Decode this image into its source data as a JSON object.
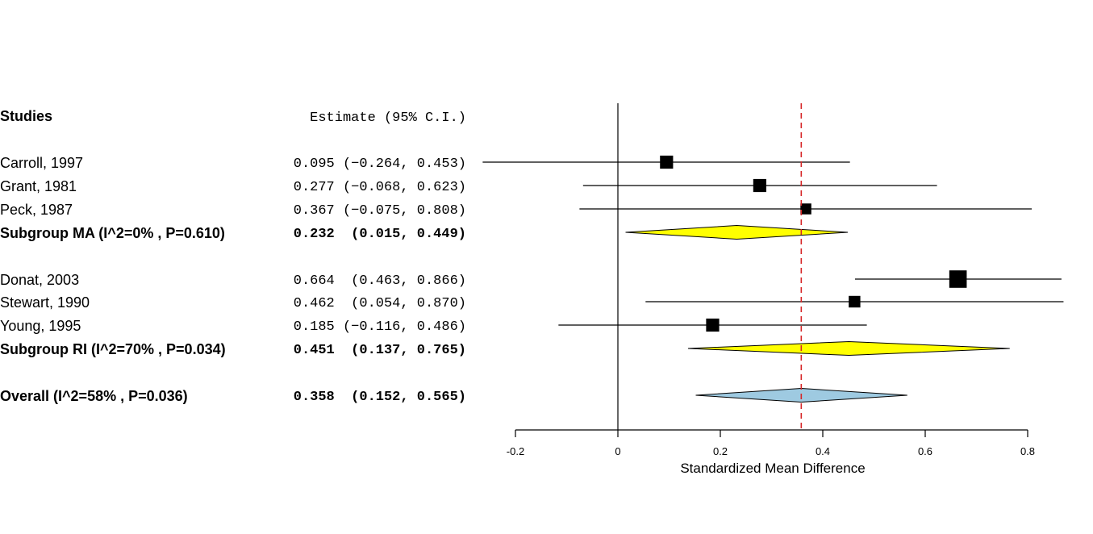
{
  "chart_data": {
    "type": "forest",
    "header": {
      "studies": "Studies",
      "estimate": "Estimate (95% C.I.)"
    },
    "xlabel": "Standardized Mean Difference",
    "xlim": [
      -0.2,
      0.8
    ],
    "ticks": [
      "-0.2",
      "0",
      "0.2",
      "0.4",
      "0.6",
      "0.8"
    ],
    "tick_values": [
      -0.2,
      0,
      0.2,
      0.4,
      0.6,
      0.8
    ],
    "reference_line": 0.358,
    "colors": {
      "subgroup_diamond": "#ffff00",
      "overall_diamond": "#9ecae1",
      "reference_line": "#d62728",
      "study_marker": "#000000"
    },
    "rows": [
      {
        "kind": "study",
        "label": "Carroll, 1997",
        "est": 0.095,
        "lo": -0.264,
        "hi": 0.453,
        "text": "0.095 (−0.264, 0.453)",
        "weight": 0.9
      },
      {
        "kind": "study",
        "label": "Grant, 1981",
        "est": 0.277,
        "lo": -0.068,
        "hi": 0.623,
        "text": "0.277 (−0.068, 0.623)",
        "weight": 0.9
      },
      {
        "kind": "study",
        "label": "Peck, 1987",
        "est": 0.367,
        "lo": -0.075,
        "hi": 0.808,
        "text": "0.367 (−0.075, 0.808)",
        "weight": 0.75
      },
      {
        "kind": "summary",
        "label": "Subgroup MA (I^2=0% , P=0.610)",
        "est": 0.232,
        "lo": 0.015,
        "hi": 0.449,
        "text": "0.232  (0.015, 0.449)",
        "color": "#ffff00"
      },
      {
        "kind": "study",
        "label": "Donat, 2003",
        "est": 0.664,
        "lo": 0.463,
        "hi": 0.866,
        "text": "0.664  (0.463, 0.866)",
        "weight": 1.2
      },
      {
        "kind": "study",
        "label": "Stewart, 1990",
        "est": 0.462,
        "lo": 0.054,
        "hi": 0.87,
        "text": "0.462  (0.054, 0.870)",
        "weight": 0.8
      },
      {
        "kind": "study",
        "label": "Young, 1995",
        "est": 0.185,
        "lo": -0.116,
        "hi": 0.486,
        "text": "0.185 (−0.116, 0.486)",
        "weight": 0.9
      },
      {
        "kind": "summary",
        "label": "Subgroup RI (I^2=70% , P=0.034)",
        "est": 0.451,
        "lo": 0.137,
        "hi": 0.765,
        "text": "0.451  (0.137, 0.765)",
        "color": "#ffff00"
      },
      {
        "kind": "summary",
        "label": "Overall (I^2=58% , P=0.036)",
        "est": 0.358,
        "lo": 0.152,
        "hi": 0.565,
        "text": "0.358  (0.152, 0.565)",
        "color": "#9ecae1"
      }
    ]
  }
}
